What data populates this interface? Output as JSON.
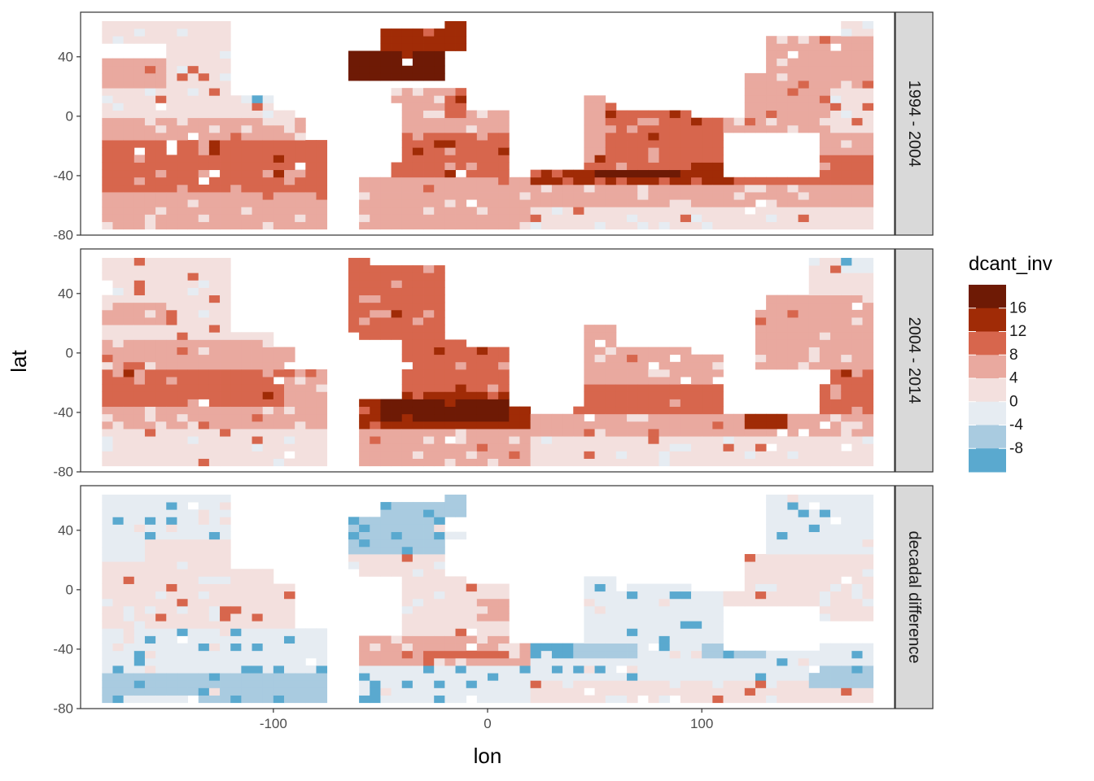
{
  "chart_data": {
    "type": "heatmap",
    "x": {
      "label": "lon",
      "range": [
        -190,
        190
      ],
      "ticks": [
        -100,
        0,
        100
      ]
    },
    "y": {
      "label": "lat",
      "range": [
        -80,
        70
      ],
      "ticks": [
        40,
        0,
        -40,
        -80
      ]
    },
    "grid": false,
    "facets": [
      {
        "label": "1994 - 2004",
        "regions": [
          {
            "lon": [
              -180,
              -75
            ],
            "lat": [
              -76,
              -52
            ],
            "value": 4
          },
          {
            "lon": [
              -180,
              -75
            ],
            "lat": [
              -52,
              -16
            ],
            "value": 8
          },
          {
            "lon": [
              -180,
              -85
            ],
            "lat": [
              -16,
              0
            ],
            "value": 4
          },
          {
            "lon": [
              -180,
              -90
            ],
            "lat": [
              0,
              18
            ],
            "value": 2
          },
          {
            "lon": [
              -180,
              -150
            ],
            "lat": [
              18,
              40
            ],
            "value": 4
          },
          {
            "lon": [
              -150,
              -100
            ],
            "lat": [
              18,
              50
            ],
            "value": 2
          },
          {
            "lon": [
              -180,
              -100
            ],
            "lat": [
              50,
              66
            ],
            "value": 2
          },
          {
            "lon": [
              -135,
              -110
            ],
            "lat": [
              62,
              66
            ],
            "value": -2
          },
          {
            "lon": [
              -115,
              -95
            ],
            "lat": [
              8,
              16
            ],
            "value": -2
          },
          {
            "lon": [
              -60,
              20
            ],
            "lat": [
              -76,
              -40
            ],
            "value": 4
          },
          {
            "lon": [
              -45,
              10
            ],
            "lat": [
              -40,
              -10
            ],
            "value": 8
          },
          {
            "lon": [
              -45,
              10
            ],
            "lat": [
              -10,
              20
            ],
            "value": 4
          },
          {
            "lon": [
              -75,
              -20
            ],
            "lat": [
              22,
              42
            ],
            "value": 14
          },
          {
            "lon": [
              -60,
              -45
            ],
            "lat": [
              35,
              40
            ],
            "value": 18
          },
          {
            "lon": [
              -50,
              -10
            ],
            "lat": [
              42,
              64
            ],
            "value": 12
          },
          {
            "lon": [
              -20,
              -10
            ],
            "lat": [
              0,
              20
            ],
            "value": 8
          },
          {
            "lon": [
              20,
              180
            ],
            "lat": [
              -76,
              -60
            ],
            "value": 2
          },
          {
            "lon": [
              20,
              180
            ],
            "lat": [
              -60,
              -46
            ],
            "value": 4
          },
          {
            "lon": [
              20,
              180
            ],
            "lat": [
              -46,
              -26
            ],
            "value": 8
          },
          {
            "lon": [
              20,
              100
            ],
            "lat": [
              -46,
              -36
            ],
            "value": 12
          },
          {
            "lon": [
              50,
              90
            ],
            "lat": [
              -40,
              -34
            ],
            "value": 18
          },
          {
            "lon": [
              95,
              115
            ],
            "lat": [
              -45,
              -30
            ],
            "value": 12
          },
          {
            "lon": [
              55,
              110
            ],
            "lat": [
              -26,
              10
            ],
            "value": 8
          },
          {
            "lon": [
              40,
              55
            ],
            "lat": [
              -26,
              14
            ],
            "value": 4
          },
          {
            "lon": [
              110,
              180
            ],
            "lat": [
              -26,
              40
            ],
            "value": 4
          },
          {
            "lon": [
              160,
              180
            ],
            "lat": [
              -10,
              20
            ],
            "value": 2
          },
          {
            "lon": [
              125,
              180
            ],
            "lat": [
              40,
              56
            ],
            "value": 4
          },
          {
            "lon": [
              165,
              180
            ],
            "lat": [
              56,
              66
            ],
            "value": 2
          },
          {
            "lon": [
              160,
              180
            ],
            "lat": [
              -40,
              -25
            ],
            "value": 8
          }
        ]
      },
      {
        "label": "2004 - 2014",
        "regions": [
          {
            "lon": [
              -180,
              -75
            ],
            "lat": [
              -76,
              -52
            ],
            "value": 2
          },
          {
            "lon": [
              -180,
              -75
            ],
            "lat": [
              -52,
              -36
            ],
            "value": 4
          },
          {
            "lon": [
              -180,
              -95
            ],
            "lat": [
              -36,
              -12
            ],
            "value": 8
          },
          {
            "lon": [
              -95,
              -75
            ],
            "lat": [
              -36,
              -12
            ],
            "value": 4
          },
          {
            "lon": [
              -180,
              -90
            ],
            "lat": [
              -12,
              10
            ],
            "value": 4
          },
          {
            "lon": [
              -180,
              -90
            ],
            "lat": [
              10,
              35
            ],
            "value": 2
          },
          {
            "lon": [
              -180,
              -150
            ],
            "lat": [
              20,
              35
            ],
            "value": 4
          },
          {
            "lon": [
              -180,
              -110
            ],
            "lat": [
              35,
              66
            ],
            "value": 2
          },
          {
            "lon": [
              -165,
              -150
            ],
            "lat": [
              62,
              66
            ],
            "value": -2
          },
          {
            "lon": [
              -60,
              20
            ],
            "lat": [
              -76,
              -50
            ],
            "value": 4
          },
          {
            "lon": [
              -60,
              20
            ],
            "lat": [
              -50,
              -25
            ],
            "value": 12
          },
          {
            "lon": [
              -50,
              10
            ],
            "lat": [
              -45,
              -30
            ],
            "value": 15
          },
          {
            "lon": [
              -30,
              -20
            ],
            "lat": [
              -46,
              -30
            ],
            "value": 18
          },
          {
            "lon": [
              -50,
              10
            ],
            "lat": [
              -25,
              10
            ],
            "value": 8
          },
          {
            "lon": [
              -75,
              -20
            ],
            "lat": [
              10,
              66
            ],
            "value": 8
          },
          {
            "lon": [
              -75,
              -65
            ],
            "lat": [
              32,
              38
            ],
            "value": 14
          },
          {
            "lon": [
              20,
              180
            ],
            "lat": [
              -76,
              -58
            ],
            "value": 2
          },
          {
            "lon": [
              20,
              180
            ],
            "lat": [
              -58,
              -40
            ],
            "value": 4
          },
          {
            "lon": [
              40,
              160
            ],
            "lat": [
              -40,
              -20
            ],
            "value": 8
          },
          {
            "lon": [
              120,
              140
            ],
            "lat": [
              -50,
              -40
            ],
            "value": 12
          },
          {
            "lon": [
              40,
              110
            ],
            "lat": [
              -20,
              20
            ],
            "value": 4
          },
          {
            "lon": [
              125,
              180
            ],
            "lat": [
              -10,
              40
            ],
            "value": 4
          },
          {
            "lon": [
              160,
              180
            ],
            "lat": [
              -40,
              -10
            ],
            "value": 8
          },
          {
            "lon": [
              150,
              180
            ],
            "lat": [
              40,
              66
            ],
            "value": 2
          },
          {
            "lon": [
              165,
              180
            ],
            "lat": [
              52,
              62
            ],
            "value": -2
          }
        ]
      },
      {
        "label": "decadal difference",
        "regions": [
          {
            "lon": [
              -180,
              -75
            ],
            "lat": [
              -76,
              -56
            ],
            "value": -4
          },
          {
            "lon": [
              -170,
              -140
            ],
            "lat": [
              -76,
              -70
            ],
            "value": -2
          },
          {
            "lon": [
              -180,
              -75
            ],
            "lat": [
              -56,
              -24
            ],
            "value": -2
          },
          {
            "lon": [
              -180,
              -90
            ],
            "lat": [
              -24,
              20
            ],
            "value": 2
          },
          {
            "lon": [
              -180,
              -110
            ],
            "lat": [
              20,
              66
            ],
            "value": -2
          },
          {
            "lon": [
              -160,
              -120
            ],
            "lat": [
              20,
              32
            ],
            "value": 2
          },
          {
            "lon": [
              -60,
              20
            ],
            "lat": [
              -76,
              -50
            ],
            "value": -2
          },
          {
            "lon": [
              -55,
              -50
            ],
            "lat": [
              -76,
              -68
            ],
            "value": -6
          },
          {
            "lon": [
              -60,
              20
            ],
            "lat": [
              -50,
              -30
            ],
            "value": 4
          },
          {
            "lon": [
              -30,
              10
            ],
            "lat": [
              -44,
              -40
            ],
            "value": 8
          },
          {
            "lon": [
              -50,
              10
            ],
            "lat": [
              -30,
              10
            ],
            "value": 2
          },
          {
            "lon": [
              -5,
              10
            ],
            "lat": [
              -20,
              -5
            ],
            "value": 4
          },
          {
            "lon": [
              -75,
              -20
            ],
            "lat": [
              10,
              25
            ],
            "value": 2
          },
          {
            "lon": [
              -70,
              -20
            ],
            "lat": [
              25,
              50
            ],
            "value": -4
          },
          {
            "lon": [
              -50,
              -10
            ],
            "lat": [
              50,
              66
            ],
            "value": -4
          },
          {
            "lon": [
              -20,
              -10
            ],
            "lat": [
              36,
              40
            ],
            "value": -6
          },
          {
            "lon": [
              20,
              180
            ],
            "lat": [
              -76,
              -60
            ],
            "value": 2
          },
          {
            "lon": [
              20,
              180
            ],
            "lat": [
              -60,
              -34
            ],
            "value": -2
          },
          {
            "lon": [
              20,
              40
            ],
            "lat": [
              -48,
              -38
            ],
            "value": -6
          },
          {
            "lon": [
              40,
              70
            ],
            "lat": [
              -48,
              -38
            ],
            "value": -4
          },
          {
            "lon": [
              100,
              130
            ],
            "lat": [
              -48,
              -38
            ],
            "value": -4
          },
          {
            "lon": [
              150,
              180
            ],
            "lat": [
              -66,
              -50
            ],
            "value": -4
          },
          {
            "lon": [
              40,
              110
            ],
            "lat": [
              -34,
              10
            ],
            "value": -2
          },
          {
            "lon": [
              110,
              180
            ],
            "lat": [
              -20,
              25
            ],
            "value": 2
          },
          {
            "lon": [
              130,
              180
            ],
            "lat": [
              25,
              66
            ],
            "value": -2
          },
          {
            "lon": [
              60,
              70
            ],
            "lat": [
              20,
              25
            ],
            "value": 8
          }
        ]
      }
    ],
    "legend": {
      "title": "dcant_inv",
      "placement": "right",
      "labels": [
        "16",
        "12",
        "8",
        "4",
        "0",
        "-4",
        "-8"
      ],
      "colors": [
        "#6e1a05",
        "#a02b06",
        "#d7664d",
        "#e9a99f",
        "#f3e0de",
        "#e6ecf2",
        "#a9cbe0",
        "#5aa9cf"
      ]
    }
  }
}
